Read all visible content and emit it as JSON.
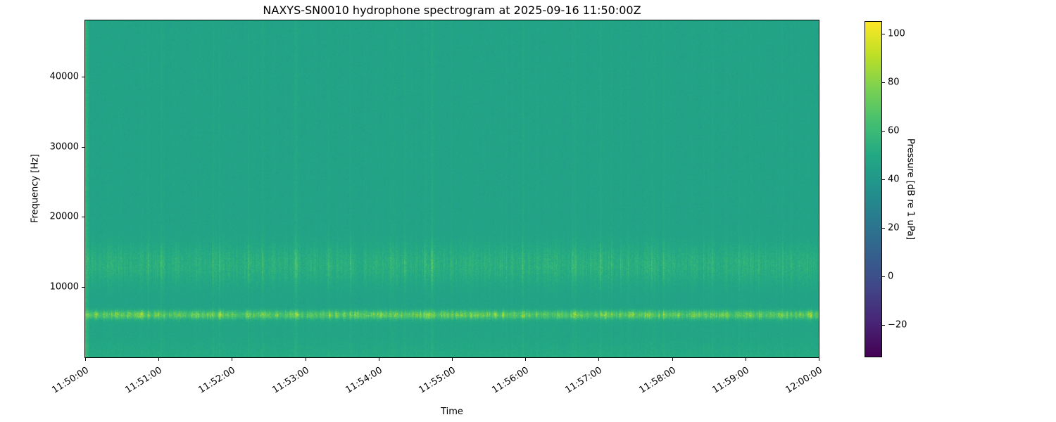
{
  "chart_data": {
    "type": "heatmap",
    "subtype": "spectrogram",
    "title": "NAXYS-SN0010 hydrophone spectrogram at 2025-09-16 11:50:00Z",
    "xlabel": "Time",
    "ylabel": "Frequency [Hz]",
    "x_ticks": [
      "11:50:00",
      "11:51:00",
      "11:52:00",
      "11:53:00",
      "11:54:00",
      "11:55:00",
      "11:56:00",
      "11:57:00",
      "11:58:00",
      "11:59:00",
      "12:00:00"
    ],
    "x_tick_interval_s": 60,
    "x_range_seconds": [
      0,
      600
    ],
    "y_ticks": [
      10000,
      20000,
      30000,
      40000
    ],
    "y_range_hz": [
      0,
      48000
    ],
    "grid": false,
    "legend": "none",
    "colormap": "viridis",
    "colormap_stops": [
      {
        "pos": 0.0,
        "color": "#440154"
      },
      {
        "pos": 0.1,
        "color": "#482475"
      },
      {
        "pos": 0.2,
        "color": "#414487"
      },
      {
        "pos": 0.3,
        "color": "#355f8d"
      },
      {
        "pos": 0.4,
        "color": "#2a788e"
      },
      {
        "pos": 0.5,
        "color": "#21918c"
      },
      {
        "pos": 0.6,
        "color": "#22a884"
      },
      {
        "pos": 0.7,
        "color": "#44bf70"
      },
      {
        "pos": 0.8,
        "color": "#7ad151"
      },
      {
        "pos": 0.9,
        "color": "#bddf26"
      },
      {
        "pos": 1.0,
        "color": "#fde725"
      }
    ],
    "colorbar": {
      "label": "Pressure [dB re 1 uPa]",
      "ticks": [
        100,
        80,
        60,
        40,
        20,
        0,
        -20
      ],
      "vmin": -33,
      "vmax": 105
    },
    "synthesis": {
      "background_db": 46.5,
      "noise_db": 2.2,
      "tonal_center_hz": 6000,
      "tonal_sigma_hz": 420,
      "tonal_baseline_db": 6,
      "band_center_hz": 13200,
      "band_sigma_hz": 1900,
      "seed": 77
    }
  }
}
